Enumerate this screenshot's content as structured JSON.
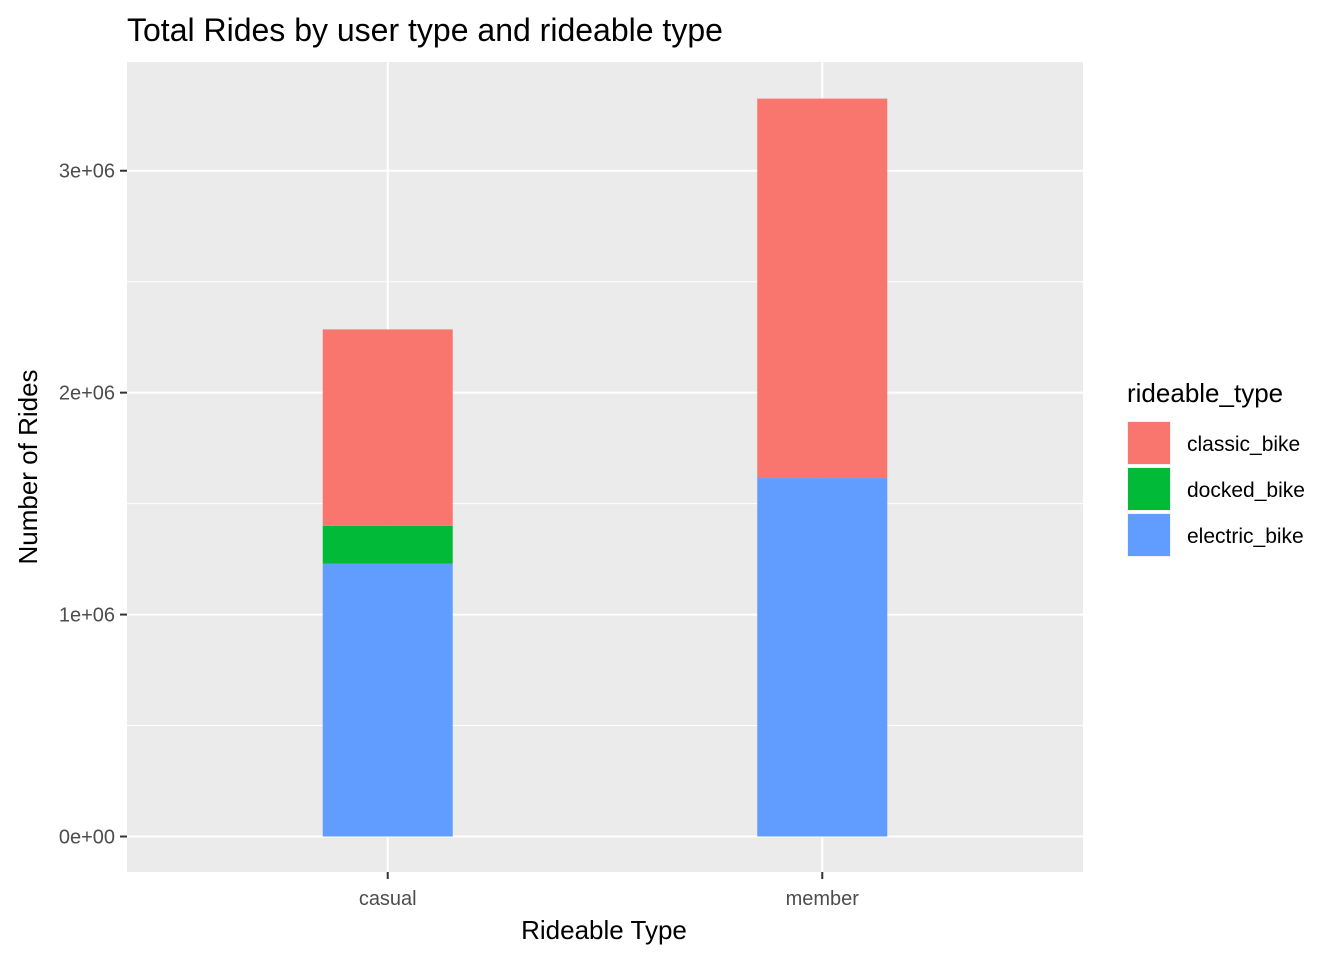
{
  "chart_data": {
    "type": "bar",
    "stacked": true,
    "title": "Total Rides by user type and rideable type",
    "xlabel": "Rideable Type",
    "ylabel": "Number of Rides",
    "categories": [
      "casual",
      "member"
    ],
    "ylim": [
      -160000,
      3490000
    ],
    "yticks": [
      0,
      1000000,
      2000000,
      3000000
    ],
    "ytick_labels": [
      "0e+00",
      "1e+06",
      "2e+06",
      "3e+06"
    ],
    "grid": true,
    "legend": {
      "title": "rideable_type",
      "position": "right"
    },
    "series": [
      {
        "name": "electric_bike",
        "color": "#619CFF",
        "values": [
          1230000,
          1615000
        ]
      },
      {
        "name": "docked_bike",
        "color": "#00BA38",
        "values": [
          170000,
          0
        ]
      },
      {
        "name": "classic_bike",
        "color": "#F8766D",
        "values": [
          885000,
          1710000
        ]
      }
    ],
    "legend_order": [
      "classic_bike",
      "docked_bike",
      "electric_bike"
    ]
  }
}
